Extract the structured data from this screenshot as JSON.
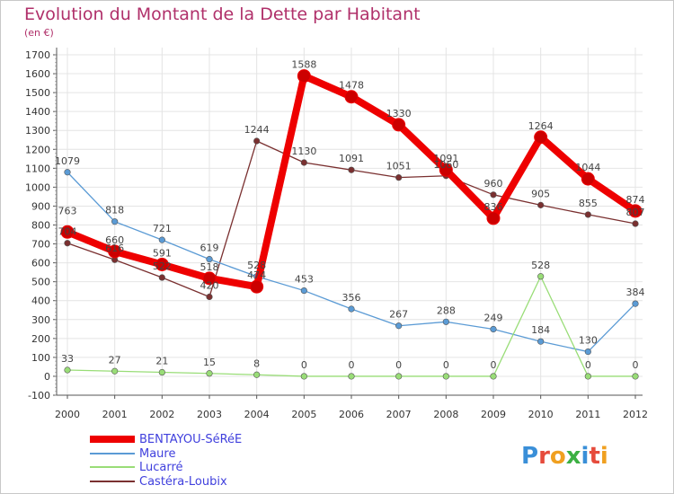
{
  "chart_data": {
    "type": "line",
    "title": "Evolution du Montant de la Dette par Habitant",
    "subtitle": "(en €)",
    "xlabel": "",
    "ylabel": "",
    "categories": [
      "2000",
      "2001",
      "2002",
      "2003",
      "2004",
      "2005",
      "2006",
      "2007",
      "2008",
      "2009",
      "2010",
      "2011",
      "2012"
    ],
    "ylim": [
      -100,
      1700
    ],
    "yticks": [
      -100,
      0,
      100,
      200,
      300,
      400,
      500,
      600,
      700,
      800,
      900,
      1000,
      1100,
      1200,
      1300,
      1400,
      1500,
      1600,
      1700
    ],
    "series": [
      {
        "name": "BENTAYOU-SéRéE",
        "color": "#ee0000",
        "values": [
          763,
          660,
          591,
          518,
          474,
          1588,
          1478,
          1330,
          1091,
          836,
          1264,
          1044,
          874
        ]
      },
      {
        "name": "Maure",
        "color": "#5b9bd5",
        "values": [
          1079,
          818,
          721,
          619,
          528,
          453,
          356,
          267,
          288,
          249,
          184,
          130,
          384
        ]
      },
      {
        "name": "Lucarré",
        "color": "#99dd77",
        "values": [
          33,
          27,
          21,
          15,
          8,
          0,
          0,
          0,
          0,
          0,
          528,
          0,
          0
        ]
      },
      {
        "name": "Castéra-Loubix",
        "color": "#7a3030",
        "values": [
          704,
          616,
          522,
          420,
          1244,
          1130,
          1091,
          1051,
          1060,
          960,
          905,
          855,
          807
        ]
      }
    ]
  },
  "branding": {
    "logo_text": "Proxiti"
  }
}
